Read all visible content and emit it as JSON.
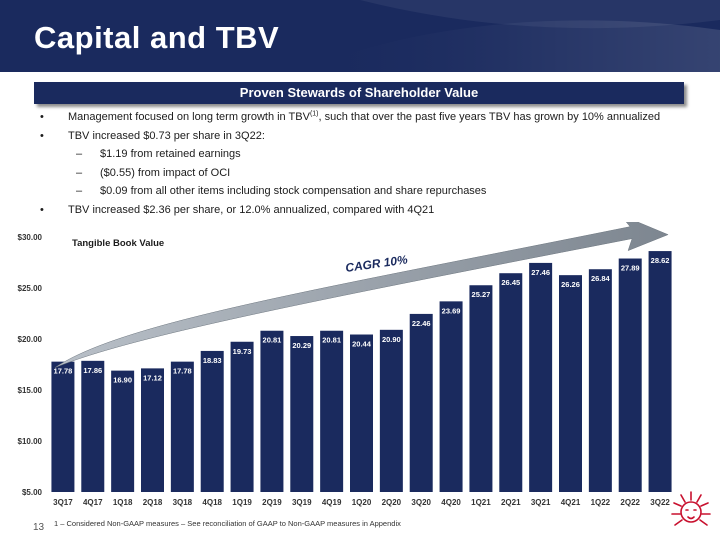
{
  "page": {
    "title": "Capital and TBV",
    "banner": "Proven Stewards of Shareholder Value",
    "bullets": [
      {
        "level": 1,
        "marker": "•",
        "text_before": "Management focused on long term growth in TBV",
        "sup": "(1)",
        "text_after": ", such that over the past five years TBV has grown by 10% annualized"
      },
      {
        "level": 1,
        "marker": "•",
        "text_before": "TBV increased $0.73 per share in 3Q22:",
        "sup": "",
        "text_after": ""
      },
      {
        "level": 2,
        "marker": "–",
        "text_before": "$1.19 from retained earnings",
        "sup": "",
        "text_after": ""
      },
      {
        "level": 2,
        "marker": "–",
        "text_before": "($0.55) from impact of OCI",
        "sup": "",
        "text_after": ""
      },
      {
        "level": 2,
        "marker": "–",
        "text_before": "$0.09 from all other items including stock compensation and share repurchases",
        "sup": "",
        "text_after": ""
      },
      {
        "level": 1,
        "marker": "•",
        "text_before": "TBV increased $2.36 per share, or 12.0% annualized, compared with 4Q21",
        "sup": "",
        "text_after": ""
      }
    ],
    "footnote": "1 – Considered Non-GAAP measures – See reconciliation of GAAP to Non-GAAP measures in Appendix",
    "page_number": "13",
    "logo_icon": "lion-head-icon"
  },
  "colors": {
    "navy": "#1a2a5e",
    "bar": "#1a2a5e",
    "arrow": "#9aa3ad",
    "text": "#1c1c1c",
    "logo": "#c8102e"
  },
  "chart_data": {
    "type": "bar",
    "series_label": "Tangible Book Value",
    "annotation": "CAGR 10%",
    "categories": [
      "3Q17",
      "4Q17",
      "1Q18",
      "2Q18",
      "3Q18",
      "4Q18",
      "1Q19",
      "2Q19",
      "3Q19",
      "4Q19",
      "1Q20",
      "2Q20",
      "3Q20",
      "4Q20",
      "1Q21",
      "2Q21",
      "3Q21",
      "4Q21",
      "1Q22",
      "2Q22",
      "3Q22"
    ],
    "values": [
      17.78,
      17.86,
      16.9,
      17.12,
      17.78,
      18.83,
      19.73,
      20.81,
      20.29,
      20.81,
      20.44,
      20.9,
      22.46,
      23.69,
      25.27,
      26.45,
      27.46,
      26.26,
      26.84,
      27.89,
      28.62
    ],
    "data_labels": [
      "17.78",
      "17.86",
      "16.90",
      "17.12",
      "17.78",
      "18.83",
      "19.73",
      "20.81",
      "20.29",
      "20.81",
      "20.44",
      "20.90",
      "22.46",
      "23.69",
      "25.27",
      "26.45",
      "27.46",
      "26.26",
      "26.84",
      "27.89",
      "28.62"
    ],
    "yticks": [
      5,
      10,
      15,
      20,
      25,
      30
    ],
    "ytick_labels": [
      "$5.00",
      "$10.00",
      "$15.00",
      "$20.00",
      "$25.00",
      "$30.00"
    ],
    "ylim": [
      5,
      30
    ],
    "xlabel": "",
    "ylabel": "",
    "grid": false,
    "trend_arrow": "rising from first to last quarter"
  }
}
